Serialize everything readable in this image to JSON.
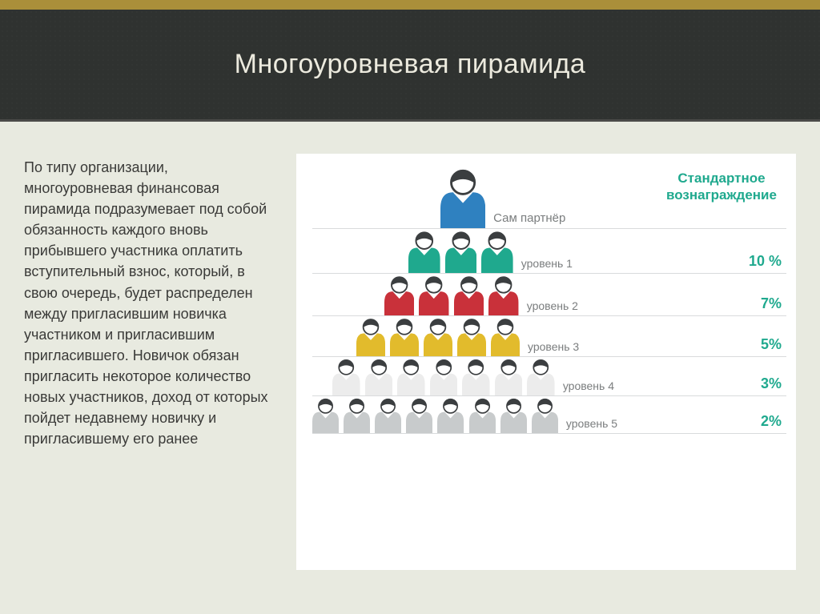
{
  "title": "Многоуровневая пирамида",
  "description": "По типу организации, многоуровневая финансовая пирамида подразумевает под собой обязанность каждого вновь прибывшего участника оплатить вступительный взнос, который, в свою очередь, будет распределен между пригласившим новичка участником и пригласившим пригласившего. Новичок обязан пригласить некоторое количество новых участников, доход от которых пойдет недавнему новичку и пригласившему его ранее",
  "reward_header": "Стандартное вознаграждение",
  "colors": {
    "top_bar": "#aa8f3a",
    "title_bg": "#2f3230",
    "page_bg": "#e8eae0",
    "accent_green": "#1fa98e",
    "label_gray": "#7a7d7e",
    "line_gray": "#d9dbdc",
    "head_fill": "#ffffff",
    "head_stroke": "#3b3e40",
    "hair": "#3b3e40"
  },
  "pyramid": {
    "levels": [
      {
        "label": "Сам партнёр",
        "count": 1,
        "body_color": "#2f81c0",
        "percent": "",
        "size": 78
      },
      {
        "label": "уровень 1",
        "count": 3,
        "body_color": "#1fa98e",
        "percent": "10 %",
        "size": 55
      },
      {
        "label": "уровень 2",
        "count": 4,
        "body_color": "#c9313a",
        "percent": "7%",
        "size": 52
      },
      {
        "label": "уровень 3",
        "count": 5,
        "body_color": "#e2bb2c",
        "percent": "5%",
        "size": 50
      },
      {
        "label": "уровень 4",
        "count": 7,
        "body_color": "#ececec",
        "percent": "3%",
        "size": 48
      },
      {
        "label": "уровень 5",
        "count": 8,
        "body_color": "#c8cbcc",
        "percent": "2%",
        "size": 46
      }
    ]
  }
}
